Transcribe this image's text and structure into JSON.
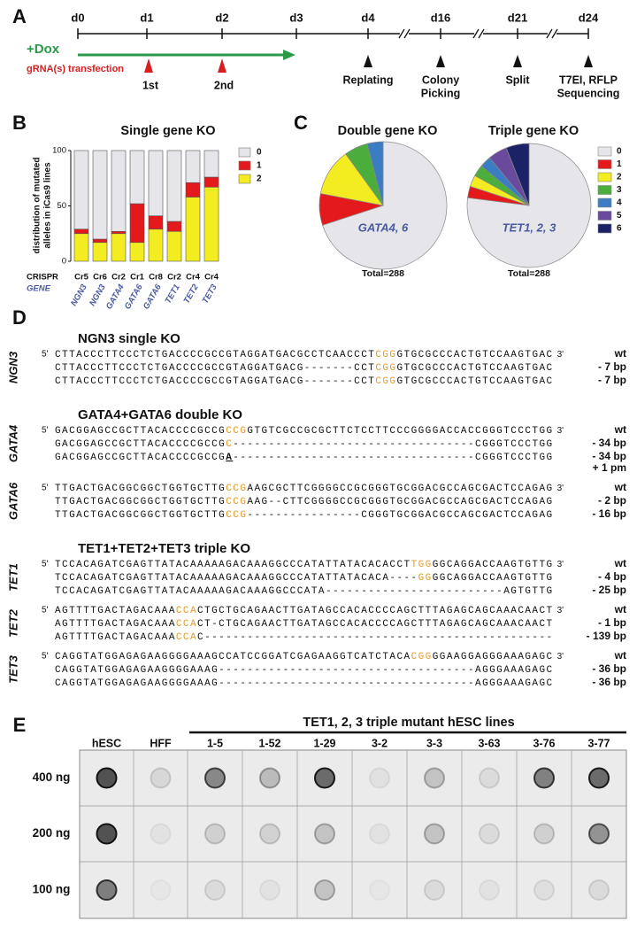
{
  "panel_a": {
    "letter": "A",
    "days": [
      "d0",
      "d1",
      "d2",
      "d3",
      "d4",
      "d16",
      "d21",
      "d24"
    ],
    "dox": "+Dox",
    "transfection": "gRNA(s) transfection",
    "transfections": [
      "1st",
      "2nd"
    ],
    "events": [
      [
        "Replating"
      ],
      [
        "Colony",
        "Picking"
      ],
      [
        "Split"
      ],
      [
        "T7EI, RFLP",
        "Sequencing"
      ]
    ]
  },
  "panel_b": {
    "letter": "B"
  },
  "panel_c": {
    "letter": "C"
  },
  "chart_data": [
    {
      "type": "bar",
      "stacked": true,
      "title": "Single gene KO",
      "y_label": [
        "distribution of mutated",
        "alleles in iCas9 lines"
      ],
      "row_labels": [
        "CRISPR",
        "GENE"
      ],
      "crispr": [
        "Cr5",
        "Cr6",
        "Cr2",
        "Cr1",
        "Cr8",
        "Cr2",
        "Cr4",
        "Cr4"
      ],
      "categories": [
        "NGN3",
        "NGN3",
        "GATA4",
        "GATA6",
        "GATA6",
        "TET1",
        "TET2",
        "TET3"
      ],
      "series": [
        {
          "name": "0",
          "color": "#e6e6ea",
          "values": [
            71,
            80,
            73,
            48,
            59,
            64,
            29,
            24
          ]
        },
        {
          "name": "1",
          "color": "#e3191c",
          "values": [
            4,
            3,
            2,
            35,
            12,
            9,
            13,
            9
          ]
        },
        {
          "name": "2",
          "color": "#f2ec20",
          "values": [
            25,
            17,
            25,
            17,
            29,
            27,
            58,
            67
          ]
        }
      ],
      "ylim": [
        0,
        100
      ],
      "yticks": [
        0,
        50,
        100
      ]
    },
    {
      "type": "pie",
      "title": "Double gene KO",
      "label": "GATA4, 6",
      "total": "Total=288",
      "colors": [
        "#e6e6ea",
        "#e3191c",
        "#f2ec20",
        "#4bae3c",
        "#3b7cc2"
      ],
      "values": [
        70,
        8,
        12,
        6,
        4
      ]
    },
    {
      "type": "pie",
      "title": "Triple gene KO",
      "label": "TET1, 2, 3",
      "total": "Total=288",
      "categories": [
        "0",
        "1",
        "2",
        "3",
        "4",
        "5",
        "6"
      ],
      "colors": [
        "#e6e6ea",
        "#e3191c",
        "#f2ec20",
        "#4bae3c",
        "#3b7cc2",
        "#6a4a9c",
        "#1c2266"
      ],
      "values": [
        77,
        3,
        3,
        3,
        3,
        5,
        6
      ],
      "legend": "right"
    }
  ],
  "panel_d": {
    "letter": "D",
    "five_prime": "5'",
    "three_prime": "3'",
    "groups": [
      {
        "title": "NGN3 single KO",
        "genes": [
          {
            "name": "NGN3",
            "lines": [
              {
                "seq": [
                  "CTTACCCTTCCCTCTGACCCCGCCGTAGGATGACGCCTCAACCCT",
                  {
                    "text": "CGG",
                    "color": "#e39b2a"
                  },
                  "GTGCGCCCACTGTCCAAGTGAC"
                ],
                "label": "wt"
              },
              {
                "seq": [
                  "CTTACCCTTCCCTCTGACCCCGCCGTAGGATGACG-------CCT",
                  {
                    "text": "CGG",
                    "color": "#e39b2a"
                  },
                  "GTGCGCCCACTGTCCAAGTGAC"
                ],
                "label": "- 7 bp"
              },
              {
                "seq": [
                  "CTTACCCTTCCCTCTGACCCCGCCGTAGGATGACG-------CCT",
                  {
                    "text": "CGG",
                    "color": "#e39b2a"
                  },
                  "GTGCGCCCACTGTCCAAGTGAC"
                ],
                "label": "- 7 bp"
              }
            ]
          }
        ]
      },
      {
        "title": "GATA4+GATA6 double KO",
        "genes": [
          {
            "name": "GATA4",
            "lines": [
              {
                "seq": [
                  "GACGGAGCCGCTTACACCCCGCCG",
                  {
                    "text": "CCG",
                    "color": "#e39b2a"
                  },
                  "GTGTCGCCGCGCTTCTCCTTCCCGGGGACCACCGGGTCCCTGG"
                ],
                "label": "wt"
              },
              {
                "seq": [
                  "GACGGAGCCGCTTACACCCCGCCG",
                  {
                    "text": "C",
                    "color": "#e39b2a"
                  },
                  "----------------------------------CGGGTCCCTGG"
                ],
                "label": "- 34 bp"
              },
              {
                "seq": [
                  "GACGGAGCCGCTTACACCCCGCCG",
                  {
                    "text": "A",
                    "underline": true
                  },
                  "----------------------------------CGGGTCCCTGG"
                ],
                "label": "- 34 bp",
                "extra_label": "+ 1 pm"
              }
            ]
          },
          {
            "name": "GATA6",
            "lines": [
              {
                "seq": [
                  "TTGACTGACGGCGGCTGGTGCTTG",
                  {
                    "text": "CCG",
                    "color": "#e39b2a"
                  },
                  "AAGCGCTTCGGGGCCGCGGGTGCGGACGCCAGCGACTCCAGAG"
                ],
                "label": "wt"
              },
              {
                "seq": [
                  "TTGACTGACGGCGGCTGGTGCTTG",
                  {
                    "text": "CCG",
                    "color": "#e39b2a"
                  },
                  "AAG--CTTCGGGGCCGCGGGTGCGGACGCCAGCGACTCCAGAG"
                ],
                "label": "- 2 bp"
              },
              {
                "seq": [
                  "TTGACTGACGGCGGCTGGTGCTTG",
                  {
                    "text": "CCG",
                    "color": "#e39b2a"
                  },
                  "----------------CGGGTGCGGACGCCAGCGACTCCAGAG"
                ],
                "label": "- 16 bp"
              }
            ]
          }
        ]
      },
      {
        "title": "TET1+TET2+TET3 triple KO",
        "genes": [
          {
            "name": "TET1",
            "lines": [
              {
                "seq": [
                  "TCCACAGATCGAGTTATACAAAAAGACAAAGGCCCATATTATACACACCT",
                  {
                    "text": "TGG",
                    "color": "#e39b2a"
                  },
                  "GGCAGGACCAAGTGTTG"
                ],
                "label": "wt"
              },
              {
                "seq": [
                  "TCCACAGATCGAGTTATACAAAAAGACAAAGGCCCATATTATACACA----",
                  {
                    "text": "GG",
                    "color": "#e39b2a"
                  },
                  "GGCAGGACCAAGTGTTG"
                ],
                "label": "- 4 bp"
              },
              {
                "seq": [
                  "TCCACAGATCGAGTTATACAAAAAGACAAAGGCCCATA-------------------------AGTGTTG"
                ],
                "label": "- 25 bp"
              }
            ]
          },
          {
            "name": "TET2",
            "lines": [
              {
                "seq": [
                  "AGTTTTGACTAGACAAA",
                  {
                    "text": "CCA",
                    "color": "#e39b2a"
                  },
                  "CTGCTGCAGAACTTGATAGCCACACCCCAGCTTTAGAGCAGCAAACAACT"
                ],
                "label": "wt"
              },
              {
                "seq": [
                  "AGTTTTGACTAGACAAA",
                  {
                    "text": "CCA",
                    "color": "#e39b2a"
                  },
                  "CT-CTGCAGAACTTGATAGCCACACCCCAGCTTTAGAGCAGCAAACAACT"
                ],
                "label": "- 1 bp"
              },
              {
                "seq": [
                  "AGTTTTGACTAGACAAA",
                  {
                    "text": "CCA",
                    "color": "#e39b2a"
                  },
                  "C-------------------------------------------------"
                ],
                "label": "- 139 bp"
              }
            ]
          },
          {
            "name": "TET3",
            "lines": [
              {
                "seq": [
                  "CAGGTATGGAGAGAAGGGGAAAGCCATCCGGATCGAGAAGGTCATCTACA",
                  {
                    "text": "CGG",
                    "color": "#e39b2a"
                  },
                  "GGAAGGAGGGAAAGAGC"
                ],
                "label": "wt"
              },
              {
                "seq": [
                  "CAGGTATGGAGAGAAGGGGAAAG------------------------------------AGGGAAAGAGC"
                ],
                "label": "- 36 bp"
              },
              {
                "seq": [
                  "CAGGTATGGAGAGAAGGGGAAAG------------------------------------AGGGAAAGAGC"
                ],
                "label": "- 36 bp"
              }
            ]
          }
        ]
      }
    ]
  },
  "panel_e": {
    "letter": "E",
    "header": "TET1, 2, 3 triple mutant hESC lines",
    "columns": [
      "hESC",
      "HFF",
      "1-5",
      "1-52",
      "1-29",
      "3-2",
      "3-3",
      "3-63",
      "3-76",
      "3-77"
    ],
    "rows": [
      "400 ng",
      "200 ng",
      "100 ng"
    ]
  }
}
